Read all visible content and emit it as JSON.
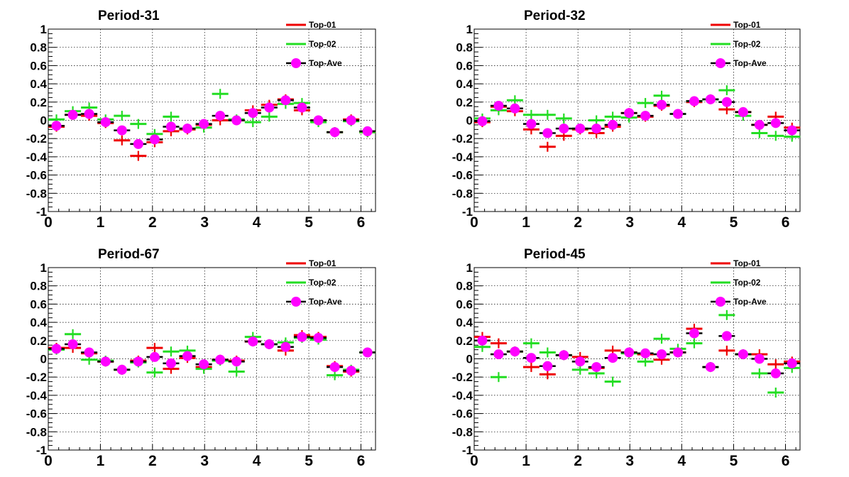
{
  "chart_data": [
    {
      "type": "scatter",
      "title": "Period-31",
      "xlim": [
        0,
        6.28
      ],
      "ylim": [
        -1,
        1
      ],
      "x_ticks": [
        "0",
        "1",
        "2",
        "3",
        "4",
        "5",
        "6"
      ],
      "y_ticks": [
        "-1",
        "-0.8",
        "-0.6",
        "-0.4",
        "-0.2",
        "0",
        "0.2",
        "0.4",
        "0.6",
        "0.8",
        "1"
      ],
      "grid": true,
      "legend_position": "top-right",
      "x": [
        0.157,
        0.471,
        0.785,
        1.1,
        1.414,
        1.728,
        2.042,
        2.356,
        2.67,
        2.985,
        3.299,
        3.613,
        3.927,
        4.241,
        4.555,
        4.869,
        5.184,
        5.498,
        5.812,
        6.126
      ],
      "series": [
        {
          "name": "Top-01",
          "color": "#ee0000",
          "marker": "cross",
          "values": [
            -0.07,
            0.06,
            0.05,
            -0.03,
            -0.22,
            -0.39,
            -0.24,
            -0.12,
            -0.1,
            -0.05,
            0.0,
            0.0,
            0.11,
            0.17,
            0.23,
            0.11,
            0.0,
            -0.13,
            0.01,
            -0.13
          ]
        },
        {
          "name": "Top-02",
          "color": "#22dd22",
          "marker": "cross",
          "values": [
            0.01,
            0.1,
            0.14,
            0.01,
            0.05,
            -0.04,
            -0.15,
            0.04,
            -0.09,
            -0.08,
            0.29,
            0.01,
            -0.02,
            0.04,
            0.18,
            0.19,
            -0.02,
            -0.13,
            -0.01,
            -0.13
          ]
        },
        {
          "name": "Top-Ave",
          "color": "#ff00ff",
          "marker": "circle",
          "values": [
            -0.06,
            0.06,
            0.07,
            -0.02,
            -0.11,
            -0.26,
            -0.21,
            -0.07,
            -0.09,
            -0.04,
            0.05,
            0.0,
            0.08,
            0.14,
            0.22,
            0.14,
            0.0,
            -0.13,
            0.0,
            -0.12
          ]
        }
      ]
    },
    {
      "type": "scatter",
      "title": "Period-32",
      "xlim": [
        0,
        6.28
      ],
      "ylim": [
        -1,
        1
      ],
      "x_ticks": [
        "0",
        "1",
        "2",
        "3",
        "4",
        "5",
        "6"
      ],
      "y_ticks": [
        "-1",
        "-0.8",
        "-0.6",
        "-0.4",
        "-0.2",
        "0",
        "0.2",
        "0.4",
        "0.6",
        "0.8",
        "1"
      ],
      "grid": true,
      "legend_position": "top-right",
      "x": [
        0.157,
        0.471,
        0.785,
        1.1,
        1.414,
        1.728,
        2.042,
        2.356,
        2.67,
        2.985,
        3.299,
        3.613,
        3.927,
        4.241,
        4.555,
        4.869,
        5.184,
        5.498,
        5.812,
        6.126
      ],
      "series": [
        {
          "name": "Top-01",
          "color": "#ee0000",
          "marker": "cross",
          "values": [
            -0.02,
            0.15,
            0.1,
            -0.1,
            -0.29,
            -0.17,
            -0.1,
            -0.14,
            -0.07,
            0.08,
            0.04,
            0.16,
            0.07,
            0.2,
            0.23,
            0.12,
            0.09,
            -0.05,
            0.04,
            -0.08
          ]
        },
        {
          "name": "Top-02",
          "color": "#22dd22",
          "marker": "cross",
          "values": [
            0.02,
            0.11,
            0.22,
            0.06,
            0.06,
            0.02,
            -0.09,
            0.0,
            0.04,
            0.03,
            0.19,
            0.27,
            0.07,
            0.21,
            0.23,
            0.33,
            0.05,
            -0.14,
            -0.17,
            -0.18
          ]
        },
        {
          "name": "Top-Ave",
          "color": "#ff00ff",
          "marker": "circle",
          "values": [
            -0.01,
            0.16,
            0.13,
            -0.04,
            -0.14,
            -0.09,
            -0.09,
            -0.09,
            -0.05,
            0.08,
            0.05,
            0.17,
            0.07,
            0.21,
            0.23,
            0.2,
            0.09,
            -0.05,
            -0.03,
            -0.11
          ]
        }
      ]
    },
    {
      "type": "scatter",
      "title": "Period-67",
      "xlim": [
        0,
        6.28
      ],
      "ylim": [
        -1,
        1
      ],
      "x_ticks": [
        "0",
        "1",
        "2",
        "3",
        "4",
        "5",
        "6"
      ],
      "y_ticks": [
        "-1",
        "-0.8",
        "-0.6",
        "-0.4",
        "-0.2",
        "0",
        "0.2",
        "0.4",
        "0.6",
        "0.8",
        "1"
      ],
      "grid": true,
      "legend_position": "top-right",
      "x": [
        0.157,
        0.471,
        0.785,
        1.1,
        1.414,
        1.728,
        2.042,
        2.356,
        2.67,
        2.985,
        3.299,
        3.613,
        3.927,
        4.241,
        4.555,
        4.869,
        5.184,
        5.498,
        5.812,
        6.126
      ],
      "series": [
        {
          "name": "Top-01",
          "color": "#ee0000",
          "marker": "cross",
          "values": [
            0.12,
            0.12,
            0.06,
            -0.03,
            -0.12,
            -0.02,
            0.12,
            -0.11,
            0.01,
            -0.09,
            -0.01,
            -0.02,
            0.19,
            0.16,
            0.09,
            0.26,
            0.24,
            -0.08,
            -0.14,
            0.07
          ]
        },
        {
          "name": "Top-02",
          "color": "#22dd22",
          "marker": "cross",
          "values": [
            0.1,
            0.27,
            -0.01,
            -0.02,
            -0.12,
            -0.04,
            -0.15,
            0.08,
            0.09,
            -0.11,
            -0.02,
            -0.14,
            0.24,
            0.16,
            0.18,
            0.23,
            0.21,
            -0.18,
            -0.12,
            0.07
          ]
        },
        {
          "name": "Top-Ave",
          "color": "#ff00ff",
          "marker": "circle",
          "values": [
            0.11,
            0.16,
            0.07,
            -0.03,
            -0.12,
            -0.03,
            0.02,
            -0.05,
            0.03,
            -0.06,
            -0.01,
            -0.03,
            0.19,
            0.16,
            0.13,
            0.24,
            0.23,
            -0.09,
            -0.13,
            0.07
          ]
        }
      ]
    },
    {
      "type": "scatter",
      "title": "Period-45",
      "xlim": [
        0,
        6.28
      ],
      "ylim": [
        -1,
        1
      ],
      "x_ticks": [
        "0",
        "1",
        "2",
        "3",
        "4",
        "5",
        "6"
      ],
      "y_ticks": [
        "-1",
        "-0.8",
        "-0.6",
        "-0.4",
        "-0.2",
        "0",
        "0.2",
        "0.4",
        "0.6",
        "0.8",
        "1"
      ],
      "grid": true,
      "legend_position": "top-right",
      "x": [
        0.157,
        0.471,
        0.785,
        1.1,
        1.414,
        1.728,
        2.042,
        2.356,
        2.67,
        2.985,
        3.299,
        3.613,
        3.927,
        4.241,
        4.555,
        4.869,
        5.184,
        5.498,
        5.812,
        6.126
      ],
      "series": [
        {
          "name": "Top-01",
          "color": "#ee0000",
          "marker": "cross",
          "values": [
            0.24,
            0.17,
            0.08,
            -0.09,
            -0.17,
            0.04,
            0.02,
            -0.1,
            0.09,
            0.07,
            0.05,
            -0.01,
            0.07,
            0.33,
            -0.09,
            0.09,
            0.05,
            0.05,
            -0.06,
            -0.03
          ]
        },
        {
          "name": "Top-02",
          "color": "#22dd22",
          "marker": "cross",
          "values": [
            0.13,
            -0.2,
            0.08,
            0.17,
            0.07,
            0.04,
            -0.12,
            -0.16,
            -0.25,
            0.06,
            -0.03,
            0.22,
            0.11,
            0.17,
            -0.09,
            0.48,
            0.05,
            -0.16,
            -0.37,
            -0.1
          ]
        },
        {
          "name": "Top-Ave",
          "color": "#ff00ff",
          "marker": "circle",
          "values": [
            0.2,
            0.05,
            0.08,
            0.01,
            -0.08,
            0.04,
            -0.03,
            -0.09,
            0.01,
            0.07,
            0.06,
            0.05,
            0.07,
            0.28,
            -0.09,
            0.25,
            0.05,
            0.0,
            -0.16,
            -0.05
          ]
        }
      ]
    }
  ]
}
